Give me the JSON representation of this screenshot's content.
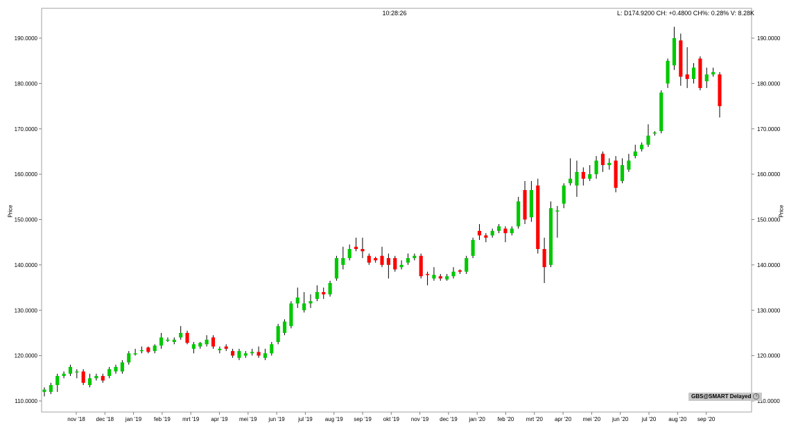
{
  "header": {
    "time": "10:28:26",
    "info": "L: D174.9200 CH: +0.4800 CH%: 0.28% V: 8.28K"
  },
  "badge": {
    "label": "GBS@SMART Delayed"
  },
  "chart_data": {
    "type": "candlestick",
    "ylabel": "Price",
    "ylim": [
      108,
      194
    ],
    "y_ticks": [
      "110.0000",
      "120.0000",
      "130.0000",
      "140.0000",
      "150.0000",
      "160.0000",
      "170.0000",
      "180.0000",
      "190.0000"
    ],
    "y_tick_values": [
      110,
      120,
      130,
      140,
      150,
      160,
      170,
      180,
      190
    ],
    "x_ticks": [
      "nov '18",
      "dec '18",
      "jan '19",
      "feb '19",
      "mrt '19",
      "apr '19",
      "mei '19",
      "jun '19",
      "jul '19",
      "aug '19",
      "sep '19",
      "okt '19",
      "nov '19",
      "dec '19",
      "jan '20",
      "feb '20",
      "mrt '20",
      "apr '20",
      "mei '20",
      "jun '20",
      "jul '20",
      "aug '20",
      "sep '20"
    ],
    "up_color": "#00c800",
    "down_color": "#ff0000",
    "candles": [
      [
        112.0,
        112.5,
        111.0,
        113.0
      ],
      [
        112.0,
        113.5,
        111.5,
        114.0
      ],
      [
        113.5,
        115.5,
        112.0,
        116.0
      ],
      [
        115.5,
        116.0,
        115.0,
        116.5
      ],
      [
        116.0,
        117.5,
        115.5,
        118.0
      ],
      [
        116.5,
        116.5,
        115.0,
        117.0
      ],
      [
        116.5,
        114.0,
        113.5,
        117.0
      ],
      [
        113.5,
        115.0,
        113.0,
        116.0
      ],
      [
        115.0,
        115.5,
        114.5,
        116.0
      ],
      [
        115.5,
        114.5,
        114.0,
        116.0
      ],
      [
        115.5,
        117.0,
        115.0,
        117.5
      ],
      [
        116.5,
        117.5,
        116.0,
        118.0
      ],
      [
        116.5,
        118.5,
        116.0,
        119.0
      ],
      [
        118.5,
        120.5,
        118.0,
        121.0
      ],
      [
        120.5,
        120.5,
        120.0,
        121.5
      ],
      [
        121.0,
        121.2,
        120.5,
        122.0
      ],
      [
        121.8,
        120.8,
        120.5,
        122.0
      ],
      [
        121.0,
        122.2,
        120.5,
        122.5
      ],
      [
        122.2,
        124.0,
        121.5,
        125.0
      ],
      [
        123.5,
        123.5,
        123.0,
        124.0
      ],
      [
        123.0,
        123.5,
        122.5,
        124.0
      ],
      [
        124.0,
        125.0,
        123.5,
        126.5
      ],
      [
        125.0,
        122.8,
        122.5,
        125.5
      ],
      [
        121.5,
        122.5,
        120.5,
        123.0
      ],
      [
        122.0,
        122.8,
        121.5,
        123.0
      ],
      [
        122.5,
        123.5,
        122.0,
        124.5
      ],
      [
        124.0,
        122.0,
        121.5,
        124.5
      ],
      [
        121.2,
        121.5,
        120.5,
        122.0
      ],
      [
        122.0,
        121.5,
        121.0,
        122.5
      ],
      [
        121.0,
        120.0,
        119.5,
        121.5
      ],
      [
        119.5,
        121.0,
        119.0,
        121.5
      ],
      [
        120.0,
        120.5,
        119.5,
        121.0
      ],
      [
        120.5,
        120.8,
        120.0,
        121.5
      ],
      [
        120.8,
        120.0,
        119.5,
        122.0
      ],
      [
        119.5,
        120.5,
        119.0,
        121.5
      ],
      [
        120.5,
        122.5,
        120.0,
        123.0
      ],
      [
        123.0,
        126.5,
        122.5,
        127.0
      ],
      [
        125.0,
        127.5,
        124.5,
        128.0
      ],
      [
        126.5,
        131.5,
        126.0,
        132.0
      ],
      [
        131.5,
        132.8,
        130.5,
        135.0
      ],
      [
        130.0,
        131.5,
        129.5,
        134.0
      ],
      [
        131.5,
        132.0,
        130.5,
        133.5
      ],
      [
        132.5,
        134.0,
        132.0,
        135.5
      ],
      [
        134.0,
        133.5,
        132.5,
        135.0
      ],
      [
        133.5,
        136.0,
        133.0,
        136.5
      ],
      [
        137.0,
        141.5,
        136.5,
        142.0
      ],
      [
        140.0,
        141.5,
        139.0,
        144.0
      ],
      [
        141.5,
        143.5,
        141.0,
        144.5
      ],
      [
        144.0,
        143.5,
        143.0,
        146.0
      ],
      [
        143.5,
        143.0,
        141.5,
        146.0
      ],
      [
        142.0,
        140.5,
        140.0,
        142.5
      ],
      [
        141.5,
        141.0,
        140.5,
        141.8
      ],
      [
        142.0,
        140.0,
        139.5,
        144.0
      ],
      [
        141.5,
        140.0,
        137.0,
        142.5
      ],
      [
        141.5,
        139.0,
        138.5,
        142.0
      ],
      [
        139.5,
        140.0,
        139.0,
        141.0
      ],
      [
        140.5,
        141.5,
        140.0,
        142.5
      ],
      [
        141.5,
        142.0,
        141.0,
        142.5
      ],
      [
        142.0,
        137.5,
        137.0,
        142.5
      ],
      [
        138.0,
        137.8,
        135.5,
        138.5
      ],
      [
        137.0,
        137.8,
        136.5,
        139.5
      ],
      [
        137.5,
        137.0,
        136.5,
        138.0
      ],
      [
        136.8,
        137.5,
        136.5,
        138.0
      ],
      [
        137.5,
        138.5,
        137.0,
        139.5
      ],
      [
        138.8,
        138.5,
        138.0,
        139.0
      ],
      [
        138.5,
        141.5,
        138.0,
        142.0
      ],
      [
        142.0,
        145.5,
        141.5,
        146.0
      ],
      [
        147.5,
        146.5,
        145.5,
        149.0
      ],
      [
        146.5,
        146.0,
        145.0,
        147.0
      ],
      [
        146.5,
        147.5,
        146.0,
        148.0
      ],
      [
        147.5,
        148.5,
        147.0,
        149.0
      ],
      [
        148.0,
        147.0,
        145.0,
        148.5
      ],
      [
        147.0,
        148.0,
        146.5,
        148.5
      ],
      [
        148.5,
        154.0,
        148.0,
        155.0
      ],
      [
        156.5,
        150.0,
        149.0,
        158.5
      ],
      [
        150.5,
        156.5,
        149.5,
        158.5
      ],
      [
        157.5,
        143.5,
        142.5,
        159.0
      ],
      [
        143.5,
        139.5,
        136.0,
        146.0
      ],
      [
        140.0,
        152.5,
        139.5,
        154.0
      ],
      [
        152.0,
        152.0,
        146.0,
        153.0
      ],
      [
        153.5,
        157.5,
        152.5,
        158.0
      ],
      [
        158.0,
        159.0,
        157.5,
        163.5
      ],
      [
        157.5,
        160.5,
        155.0,
        163.0
      ],
      [
        160.5,
        159.0,
        157.5,
        161.5
      ],
      [
        159.0,
        160.0,
        158.5,
        162.0
      ],
      [
        160.0,
        163.0,
        159.0,
        164.0
      ],
      [
        164.5,
        162.0,
        160.5,
        165.0
      ],
      [
        162.0,
        162.5,
        161.0,
        163.5
      ],
      [
        163.0,
        157.0,
        156.0,
        164.0
      ],
      [
        158.5,
        162.0,
        158.0,
        163.5
      ],
      [
        161.0,
        163.0,
        160.5,
        164.5
      ],
      [
        164.0,
        165.0,
        163.5,
        166.5
      ],
      [
        165.5,
        166.5,
        165.0,
        167.0
      ],
      [
        166.5,
        168.5,
        166.0,
        171.0
      ],
      [
        169.0,
        169.2,
        168.5,
        169.5
      ],
      [
        169.5,
        178.0,
        169.0,
        178.5
      ],
      [
        180.0,
        185.0,
        179.0,
        185.5
      ],
      [
        184.0,
        190.0,
        183.0,
        192.5
      ],
      [
        189.5,
        181.5,
        179.5,
        191.0
      ],
      [
        182.0,
        181.0,
        179.0,
        188.0
      ],
      [
        181.0,
        183.5,
        180.0,
        184.5
      ],
      [
        185.5,
        179.0,
        178.5,
        186.0
      ],
      [
        180.5,
        182.0,
        179.0,
        183.5
      ],
      [
        182.0,
        182.5,
        181.5,
        183.5
      ],
      [
        182.0,
        175.0,
        172.5,
        182.5
      ]
    ]
  }
}
